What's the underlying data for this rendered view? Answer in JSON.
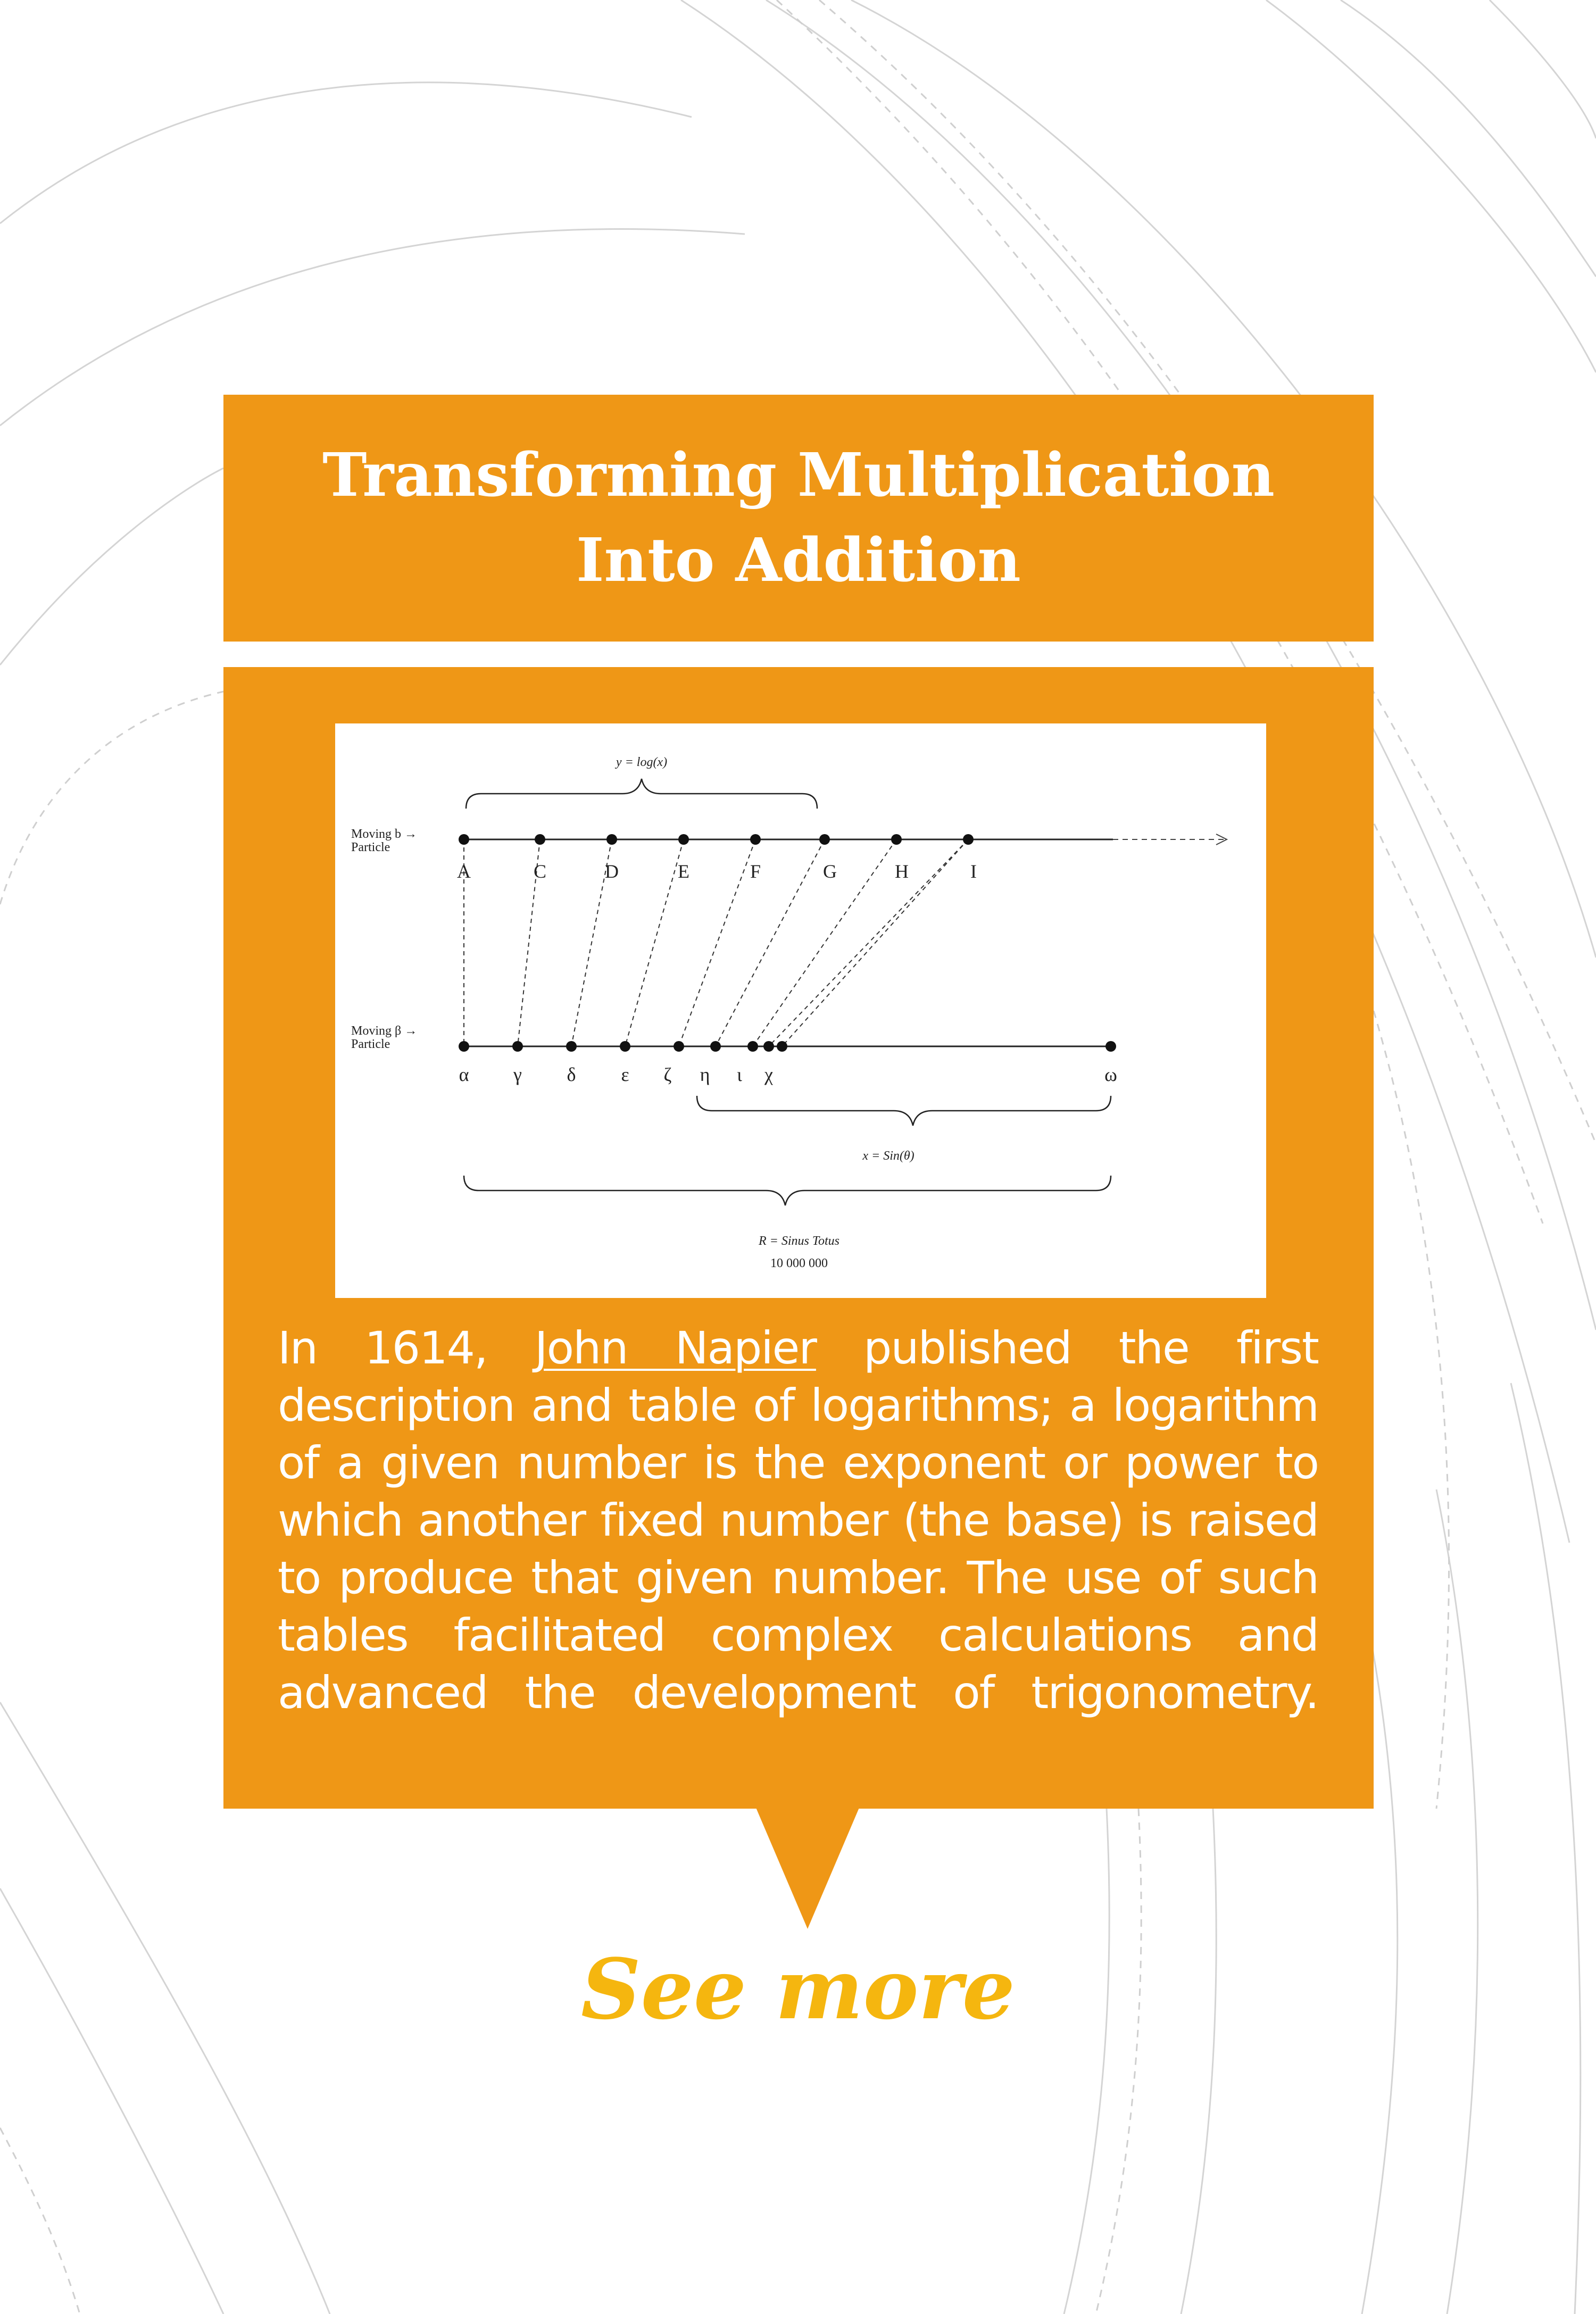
{
  "title": {
    "line1": "Transforming Multiplication",
    "line2": "Into Addition"
  },
  "diagram": {
    "top_formula": "y = log(x)",
    "mid_formula": "x = Sin(θ)",
    "bottom_formula": "R = Sinus Totus",
    "bottom_value": "10 000 000",
    "row_b_label_1": "Moving b →",
    "row_b_label_2": "Particle",
    "row_beta_label_1": "Moving β →",
    "row_beta_label_2": "Particle",
    "upper_points": [
      "A",
      "C",
      "D",
      "E",
      "F",
      "G",
      "H",
      "I"
    ],
    "lower_points": [
      "α",
      "γ",
      "δ",
      "ε",
      "ζ",
      "η",
      "ι",
      "χ"
    ],
    "end_point": "ω"
  },
  "body": {
    "pre_link": "In 1614, ",
    "link_text": "John Napier",
    "post_link": " published the first description and table of logarithms; a logarithm of a given number is the exponent or power to which another fixed number (the base) is raised to produce that given number. The use of such tables facilitated complex calculations and advanced the development of trigonometry."
  },
  "cta": {
    "label": "See more"
  },
  "colors": {
    "accent": "#ef9716",
    "cta": "#f5b60f",
    "background": "#ffffff"
  }
}
